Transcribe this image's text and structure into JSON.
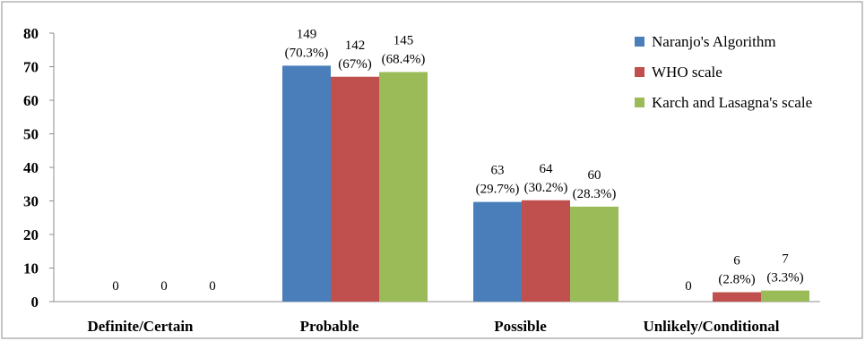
{
  "chart_data": {
    "type": "bar",
    "title": "",
    "xlabel": "",
    "ylabel": "",
    "categories": [
      "Definite/Certain",
      "Probable",
      "Possible",
      "Unlikely/Conditional"
    ],
    "ylim": [
      0,
      80
    ],
    "yticks": [
      0,
      10,
      20,
      30,
      40,
      50,
      60,
      70,
      80
    ],
    "grid": false,
    "legend": "top-right",
    "series": [
      {
        "name": "Naranjo's Algorithm",
        "color": "#4a7ebb",
        "values": [
          0,
          70.3,
          29.7,
          0
        ],
        "labels": [
          [
            "0"
          ],
          [
            "149",
            "(70.3%)"
          ],
          [
            "63",
            "(29.7%)"
          ],
          [
            "0"
          ]
        ]
      },
      {
        "name": "WHO scale",
        "color": "#c0504d",
        "values": [
          0,
          67,
          30.2,
          2.8
        ],
        "labels": [
          [
            "0"
          ],
          [
            "142",
            "(67%)"
          ],
          [
            "64",
            "(30.2%)"
          ],
          [
            "6",
            "(2.8%)"
          ]
        ]
      },
      {
        "name": "Karch and Lasagna's scale",
        "color": "#9bbb59",
        "values": [
          0,
          68.4,
          28.3,
          3.3
        ],
        "labels": [
          [
            "0"
          ],
          [
            "145",
            "(68.4%)"
          ],
          [
            "60",
            "(28.3%)"
          ],
          [
            "7",
            "(3.3%)"
          ]
        ]
      }
    ]
  }
}
